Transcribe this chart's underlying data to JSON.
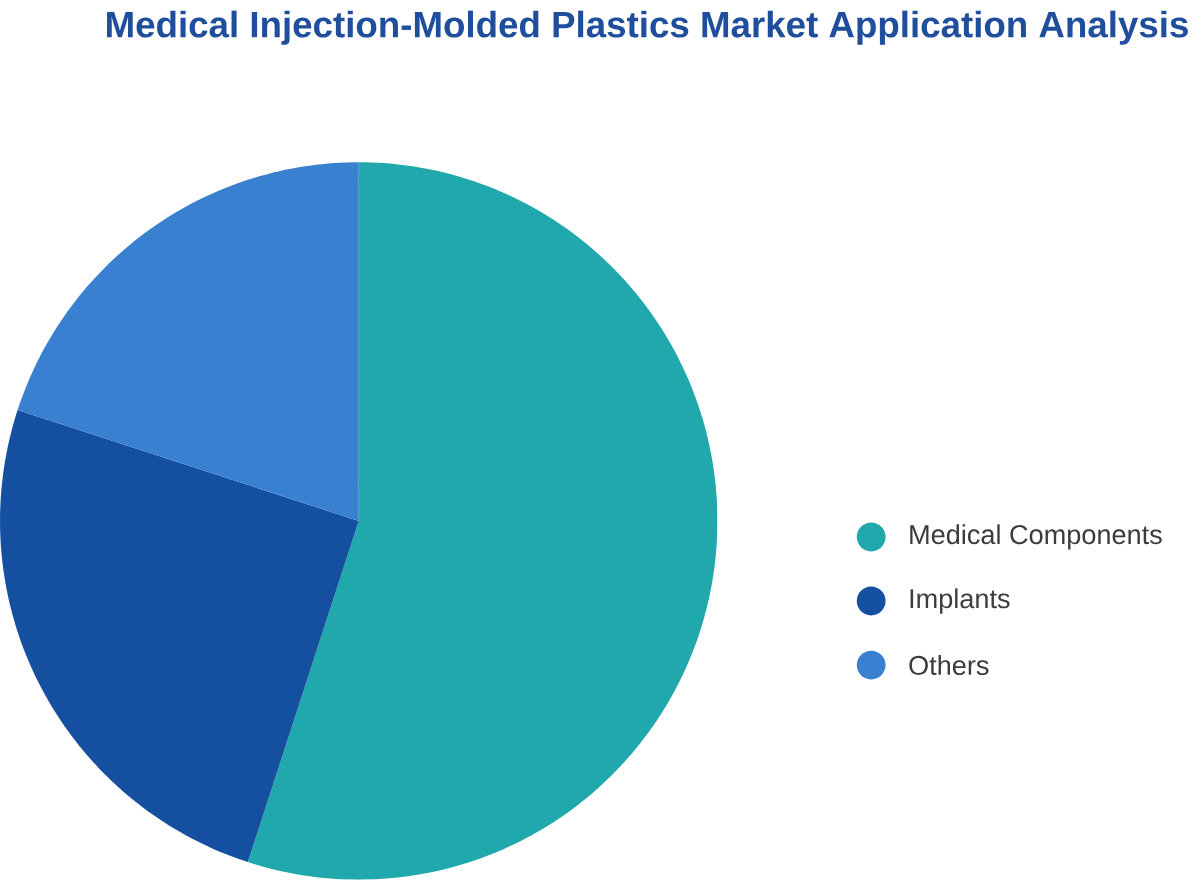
{
  "chart_data": {
    "type": "pie",
    "title": "Medical Injection-Molded Plastics Market Application Analysis",
    "categories": [
      "Medical Components",
      "Implants",
      "Others"
    ],
    "values": [
      55,
      25,
      20
    ],
    "colors": [
      "#20a8ac",
      "#1550a0",
      "#3a80d0"
    ],
    "legend": "right"
  }
}
